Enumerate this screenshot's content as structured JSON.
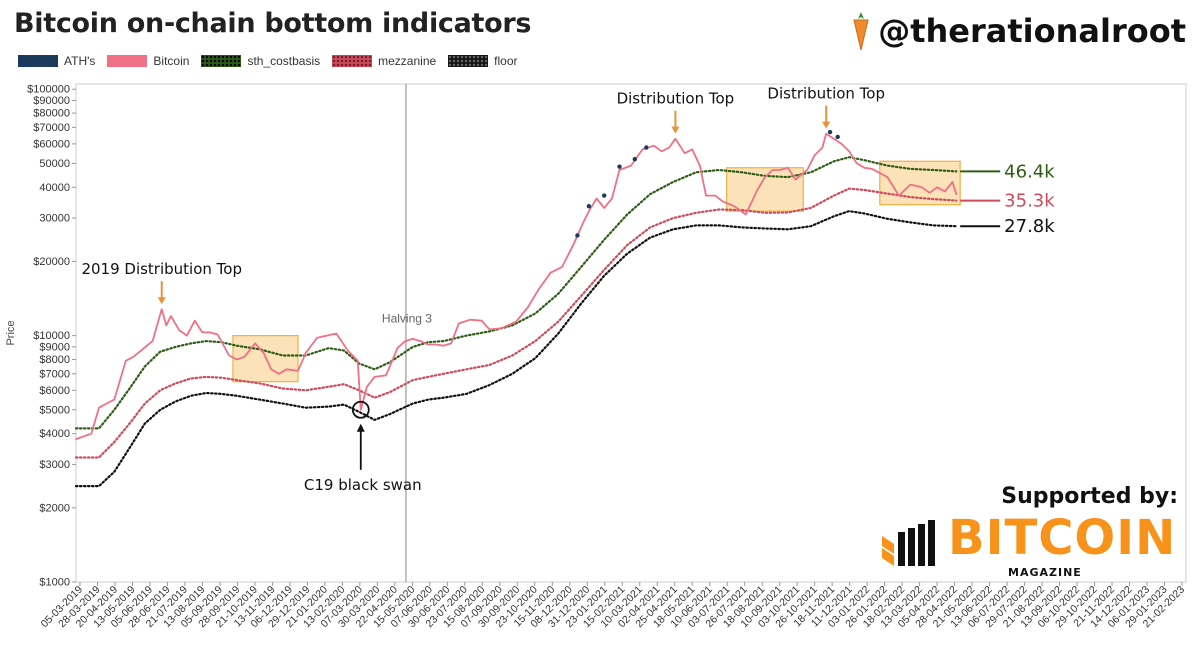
{
  "header": {
    "title": "Bitcoin on-chain bottom indicators",
    "handle": "@therationalroot"
  },
  "sponsor": {
    "supported_by": "Supported by:",
    "brand": "BITCOIN",
    "sub": "MAGAZINE"
  },
  "colors": {
    "ath": "#1b3a5c",
    "bitcoin": "#f07086",
    "sth": "#2e5e16",
    "mezzanine": "#cc4b5c",
    "floor": "#111111",
    "box_fill": "#f9d8a0",
    "box_stroke": "#f0b040",
    "arrow": "#e8933a",
    "orange": "#f7931a"
  },
  "chart_data": {
    "type": "line",
    "title": "Bitcoin on-chain bottom indicators",
    "ylabel": "Price",
    "yscale": "log",
    "ylim": [
      1000,
      105000
    ],
    "y_ticks": [
      1000,
      2000,
      3000,
      4000,
      5000,
      6000,
      7000,
      8000,
      9000,
      10000,
      20000,
      30000,
      40000,
      50000,
      60000,
      70000,
      80000,
      90000,
      100000
    ],
    "y_tick_labels": [
      "$1000",
      "$2000",
      "$3000",
      "$4000",
      "$5000",
      "$6000",
      "$7000",
      "$8000",
      "$9000",
      "$10000",
      "$20000",
      "30000",
      "40000",
      "50000",
      "$60000",
      "$70000",
      "$80000",
      "$90000",
      "$100000"
    ],
    "x_tick_labels": [
      "05-03-2019",
      "28-03-2019",
      "20-04-2019",
      "13-05-2019",
      "05-06-2019",
      "28-06-2019",
      "21-07-2019",
      "13-08-2019",
      "05-09-2019",
      "28-09-2019",
      "21-10-2019",
      "13-11-2019",
      "06-12-2019",
      "29-12-2019",
      "21-01-2020",
      "13-02-2020",
      "07-03-2020",
      "30-03-2020",
      "22-04-2020",
      "15-05-2020",
      "07-06-2020",
      "30-06-2020",
      "23-07-2020",
      "15-08-2020",
      "07-09-2020",
      "30-09-2020",
      "23-10-2020",
      "15-11-2020",
      "08-12-2020",
      "31-12-2020",
      "23-01-2021",
      "15-02-2021",
      "10-03-2021",
      "02-04-2021",
      "25-04-2021",
      "18-05-2021",
      "10-06-2021",
      "03-07-2021",
      "26-07-2021",
      "18-08-2021",
      "10-09-2021",
      "03-10-2021",
      "26-10-2021",
      "18-11-2021",
      "11-12-2021",
      "03-01-2022",
      "26-01-2022",
      "18-02-2022",
      "13-03-2022",
      "05-04-2022",
      "28-04-2022",
      "21-05-2022",
      "13-06-2022",
      "06-07-2022",
      "29-07-2022",
      "21-08-2022",
      "13-09-2022",
      "06-10-2022",
      "29-10-2022",
      "21-11-2022",
      "14-12-2022",
      "06-01-2023",
      "29-01-2023",
      "21-02-2023"
    ],
    "x_index_note": "x values are days since 05-03-2019",
    "legend": [
      "ATH's",
      "Bitcoin",
      "sth_costbasis",
      "mezzanine",
      "floor"
    ],
    "series": [
      {
        "name": "Bitcoin",
        "style": "solid",
        "points": [
          [
            0,
            3800
          ],
          [
            20,
            4000
          ],
          [
            30,
            5100
          ],
          [
            40,
            5300
          ],
          [
            50,
            5500
          ],
          [
            65,
            7900
          ],
          [
            75,
            8200
          ],
          [
            85,
            8700
          ],
          [
            100,
            9500
          ],
          [
            112,
            12800
          ],
          [
            118,
            11000
          ],
          [
            124,
            12000
          ],
          [
            135,
            10500
          ],
          [
            145,
            10000
          ],
          [
            155,
            11500
          ],
          [
            165,
            10300
          ],
          [
            175,
            10300
          ],
          [
            185,
            10100
          ],
          [
            200,
            8300
          ],
          [
            210,
            8000
          ],
          [
            220,
            8200
          ],
          [
            234,
            9300
          ],
          [
            245,
            8500
          ],
          [
            255,
            7300
          ],
          [
            265,
            7000
          ],
          [
            275,
            7300
          ],
          [
            290,
            7200
          ],
          [
            300,
            8500
          ],
          [
            315,
            9800
          ],
          [
            340,
            10200
          ],
          [
            355,
            8700
          ],
          [
            368,
            7900
          ],
          [
            372,
            5000
          ],
          [
            380,
            6200
          ],
          [
            390,
            6800
          ],
          [
            405,
            6900
          ],
          [
            420,
            8900
          ],
          [
            430,
            9500
          ],
          [
            440,
            9700
          ],
          [
            450,
            9500
          ],
          [
            460,
            9200
          ],
          [
            470,
            9200
          ],
          [
            480,
            9100
          ],
          [
            490,
            9300
          ],
          [
            500,
            11200
          ],
          [
            515,
            11600
          ],
          [
            530,
            11500
          ],
          [
            540,
            10600
          ],
          [
            555,
            10700
          ],
          [
            575,
            11400
          ],
          [
            590,
            13000
          ],
          [
            605,
            15500
          ],
          [
            620,
            18000
          ],
          [
            635,
            19000
          ],
          [
            650,
            23500
          ],
          [
            663,
            28900
          ],
          [
            670,
            32000
          ],
          [
            680,
            36000
          ],
          [
            690,
            33000
          ],
          [
            700,
            36000
          ],
          [
            710,
            47000
          ],
          [
            725,
            49000
          ],
          [
            740,
            57000
          ],
          [
            755,
            59000
          ],
          [
            765,
            56000
          ],
          [
            775,
            58000
          ],
          [
            783,
            63000
          ],
          [
            795,
            55000
          ],
          [
            805,
            57000
          ],
          [
            815,
            49000
          ],
          [
            823,
            37000
          ],
          [
            835,
            37000
          ],
          [
            845,
            35000
          ],
          [
            860,
            33500
          ],
          [
            875,
            31000
          ],
          [
            890,
            39000
          ],
          [
            900,
            44000
          ],
          [
            910,
            47000
          ],
          [
            920,
            47000
          ],
          [
            930,
            48000
          ],
          [
            940,
            43000
          ],
          [
            955,
            47000
          ],
          [
            965,
            54000
          ],
          [
            975,
            58000
          ],
          [
            980,
            66000
          ],
          [
            990,
            63000
          ],
          [
            1000,
            60000
          ],
          [
            1010,
            56000
          ],
          [
            1020,
            50000
          ],
          [
            1030,
            48000
          ],
          [
            1040,
            47500
          ],
          [
            1060,
            44000
          ],
          [
            1075,
            37000
          ],
          [
            1090,
            41000
          ],
          [
            1105,
            40000
          ],
          [
            1115,
            38000
          ],
          [
            1125,
            40000
          ],
          [
            1135,
            38500
          ],
          [
            1145,
            42000
          ],
          [
            1150,
            37500
          ]
        ]
      },
      {
        "name": "sth_costbasis",
        "style": "dotted",
        "points": [
          [
            0,
            4200
          ],
          [
            30,
            4200
          ],
          [
            50,
            5000
          ],
          [
            70,
            6100
          ],
          [
            90,
            7500
          ],
          [
            110,
            8600
          ],
          [
            130,
            9000
          ],
          [
            150,
            9300
          ],
          [
            170,
            9500
          ],
          [
            190,
            9400
          ],
          [
            210,
            9100
          ],
          [
            240,
            8800
          ],
          [
            270,
            8300
          ],
          [
            300,
            8300
          ],
          [
            330,
            8900
          ],
          [
            350,
            8700
          ],
          [
            370,
            7700
          ],
          [
            390,
            7300
          ],
          [
            410,
            7800
          ],
          [
            440,
            9000
          ],
          [
            460,
            9400
          ],
          [
            480,
            9500
          ],
          [
            510,
            10000
          ],
          [
            540,
            10400
          ],
          [
            570,
            11000
          ],
          [
            600,
            12300
          ],
          [
            630,
            14800
          ],
          [
            660,
            19000
          ],
          [
            690,
            24500
          ],
          [
            720,
            31000
          ],
          [
            750,
            37500
          ],
          [
            780,
            42000
          ],
          [
            810,
            46000
          ],
          [
            840,
            47000
          ],
          [
            870,
            46000
          ],
          [
            900,
            44500
          ],
          [
            930,
            44000
          ],
          [
            960,
            46000
          ],
          [
            990,
            51000
          ],
          [
            1010,
            53000
          ],
          [
            1030,
            51500
          ],
          [
            1060,
            49000
          ],
          [
            1090,
            47500
          ],
          [
            1120,
            47000
          ],
          [
            1150,
            46400
          ]
        ]
      },
      {
        "name": "mezzanine",
        "style": "dotted",
        "points": [
          [
            0,
            3200
          ],
          [
            30,
            3200
          ],
          [
            50,
            3700
          ],
          [
            70,
            4400
          ],
          [
            90,
            5300
          ],
          [
            110,
            6000
          ],
          [
            130,
            6400
          ],
          [
            150,
            6700
          ],
          [
            170,
            6800
          ],
          [
            190,
            6750
          ],
          [
            210,
            6600
          ],
          [
            240,
            6400
          ],
          [
            270,
            6100
          ],
          [
            300,
            6000
          ],
          [
            330,
            6200
          ],
          [
            350,
            6350
          ],
          [
            370,
            6000
          ],
          [
            390,
            5600
          ],
          [
            410,
            5900
          ],
          [
            440,
            6600
          ],
          [
            460,
            6800
          ],
          [
            480,
            7000
          ],
          [
            510,
            7300
          ],
          [
            540,
            7600
          ],
          [
            570,
            8300
          ],
          [
            600,
            9500
          ],
          [
            630,
            11400
          ],
          [
            660,
            14500
          ],
          [
            690,
            18500
          ],
          [
            720,
            23300
          ],
          [
            750,
            27500
          ],
          [
            780,
            30000
          ],
          [
            810,
            31500
          ],
          [
            840,
            32500
          ],
          [
            870,
            32300
          ],
          [
            900,
            31500
          ],
          [
            930,
            31600
          ],
          [
            960,
            33000
          ],
          [
            990,
            37000
          ],
          [
            1010,
            39500
          ],
          [
            1030,
            39000
          ],
          [
            1060,
            37700
          ],
          [
            1090,
            36500
          ],
          [
            1120,
            35800
          ],
          [
            1150,
            35300
          ]
        ]
      },
      {
        "name": "floor",
        "style": "dotted",
        "points": [
          [
            0,
            2450
          ],
          [
            30,
            2450
          ],
          [
            50,
            2800
          ],
          [
            70,
            3500
          ],
          [
            90,
            4400
          ],
          [
            110,
            5000
          ],
          [
            130,
            5400
          ],
          [
            150,
            5700
          ],
          [
            170,
            5850
          ],
          [
            190,
            5800
          ],
          [
            210,
            5700
          ],
          [
            240,
            5500
          ],
          [
            270,
            5300
          ],
          [
            300,
            5100
          ],
          [
            330,
            5150
          ],
          [
            350,
            5250
          ],
          [
            370,
            4900
          ],
          [
            390,
            4550
          ],
          [
            410,
            4800
          ],
          [
            440,
            5300
          ],
          [
            460,
            5500
          ],
          [
            480,
            5600
          ],
          [
            510,
            5800
          ],
          [
            540,
            6300
          ],
          [
            570,
            7000
          ],
          [
            600,
            8100
          ],
          [
            630,
            10200
          ],
          [
            660,
            13500
          ],
          [
            690,
            17500
          ],
          [
            720,
            21500
          ],
          [
            750,
            25000
          ],
          [
            780,
            27000
          ],
          [
            810,
            28000
          ],
          [
            840,
            28000
          ],
          [
            870,
            27500
          ],
          [
            900,
            27200
          ],
          [
            930,
            27000
          ],
          [
            960,
            27800
          ],
          [
            990,
            30500
          ],
          [
            1010,
            32000
          ],
          [
            1030,
            31300
          ],
          [
            1060,
            29800
          ],
          [
            1090,
            28800
          ],
          [
            1120,
            28000
          ],
          [
            1150,
            27800
          ]
        ]
      },
      {
        "name": "ATH's",
        "style": "marks",
        "points": [
          [
            655,
            25500
          ],
          [
            670,
            33500
          ],
          [
            690,
            37000
          ],
          [
            710,
            48500
          ],
          [
            730,
            52000
          ],
          [
            745,
            58000
          ],
          [
            985,
            67000
          ],
          [
            995,
            64000
          ]
        ]
      }
    ],
    "annotations": [
      {
        "text": "2019 Distribution Top",
        "x": 112,
        "y": 12800,
        "kind": "arrow-down"
      },
      {
        "text": "Distribution Top",
        "x": 783,
        "y": 63000,
        "kind": "arrow-down"
      },
      {
        "text": "Distribution Top",
        "x": 980,
        "y": 66000,
        "kind": "arrow-down"
      },
      {
        "text": "C19 black swan",
        "x": 372,
        "y": 5000,
        "kind": "arrow-up-circle"
      },
      {
        "text": "Halving 3",
        "x": 431,
        "y": 13000,
        "kind": "vertical-line"
      }
    ],
    "highlight_boxes": [
      {
        "x0": 205,
        "x1": 290,
        "y0": 6500,
        "y1": 10000
      },
      {
        "x0": 850,
        "x1": 950,
        "y0": 32000,
        "y1": 48000
      },
      {
        "x0": 1050,
        "x1": 1155,
        "y0": 34000,
        "y1": 51000
      }
    ],
    "end_labels": [
      {
        "text": "46.4k",
        "value": 46400,
        "series": "sth_costbasis"
      },
      {
        "text": "35.3k",
        "value": 35300,
        "series": "mezzanine"
      },
      {
        "text": "27.8k",
        "value": 27800,
        "series": "floor"
      }
    ],
    "xlim": [
      0,
      1450
    ]
  }
}
